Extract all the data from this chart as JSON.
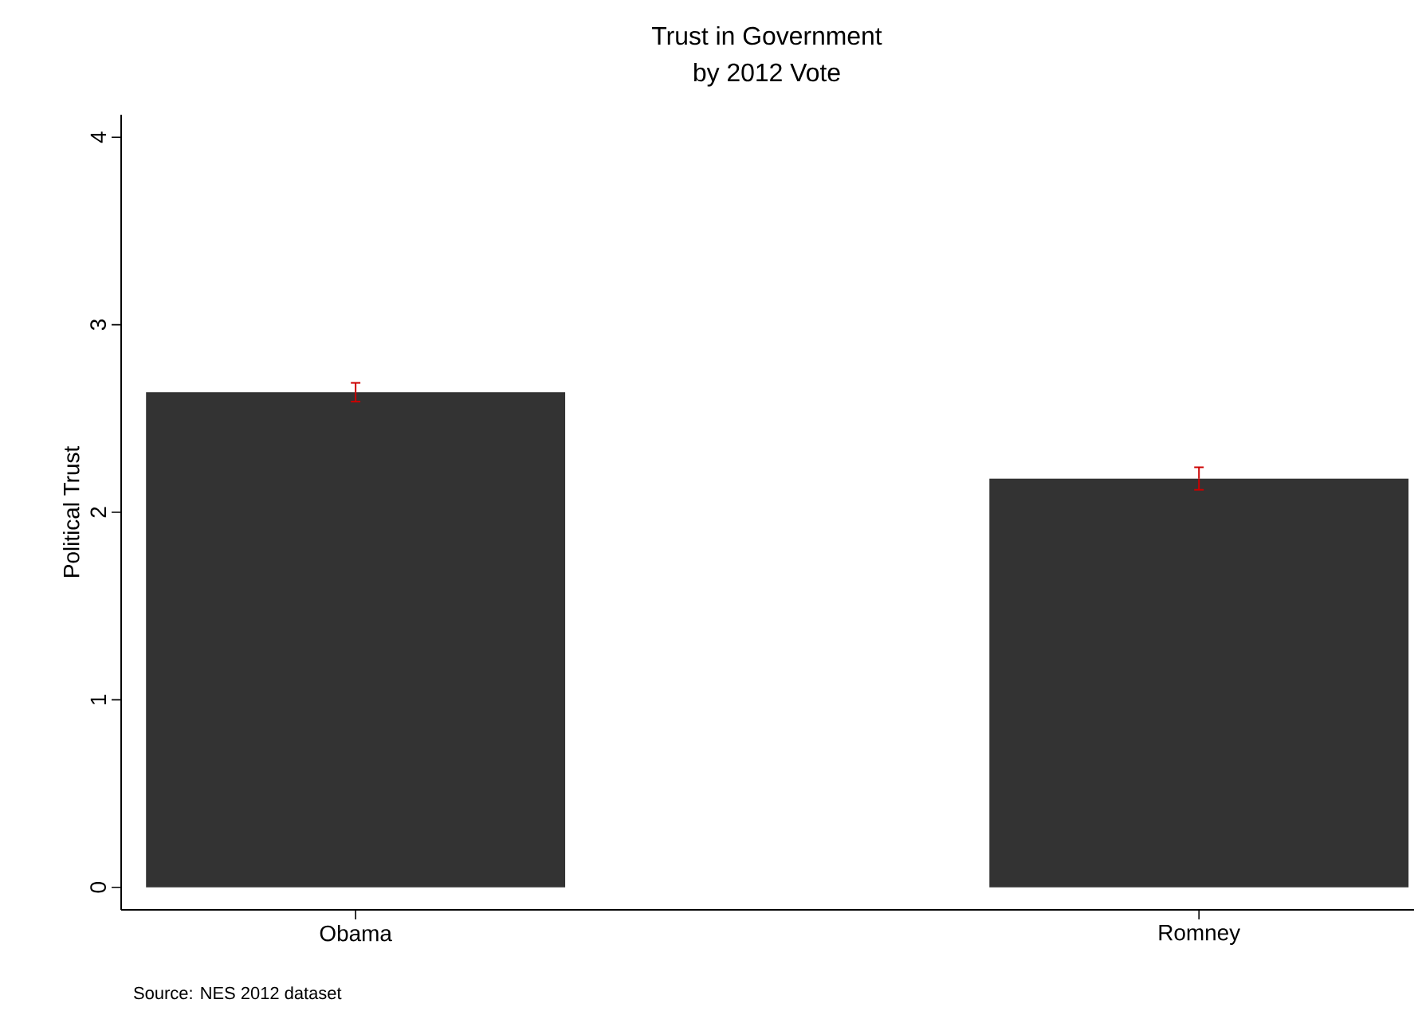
{
  "chart_data": {
    "type": "bar",
    "title": "Trust in Government",
    "subtitle": "by 2012 Vote",
    "ylabel": "Political Trust",
    "categories": [
      "Obama",
      "Romney"
    ],
    "values": [
      2.64,
      2.18
    ],
    "errors": [
      0.05,
      0.06
    ],
    "color": "#333333",
    "ylim": [
      -0.12,
      4.12
    ],
    "yticks": [
      0,
      1,
      2,
      3,
      4
    ],
    "grid": false,
    "annotations": [
      "Source: NES 2012 dataset"
    ]
  }
}
